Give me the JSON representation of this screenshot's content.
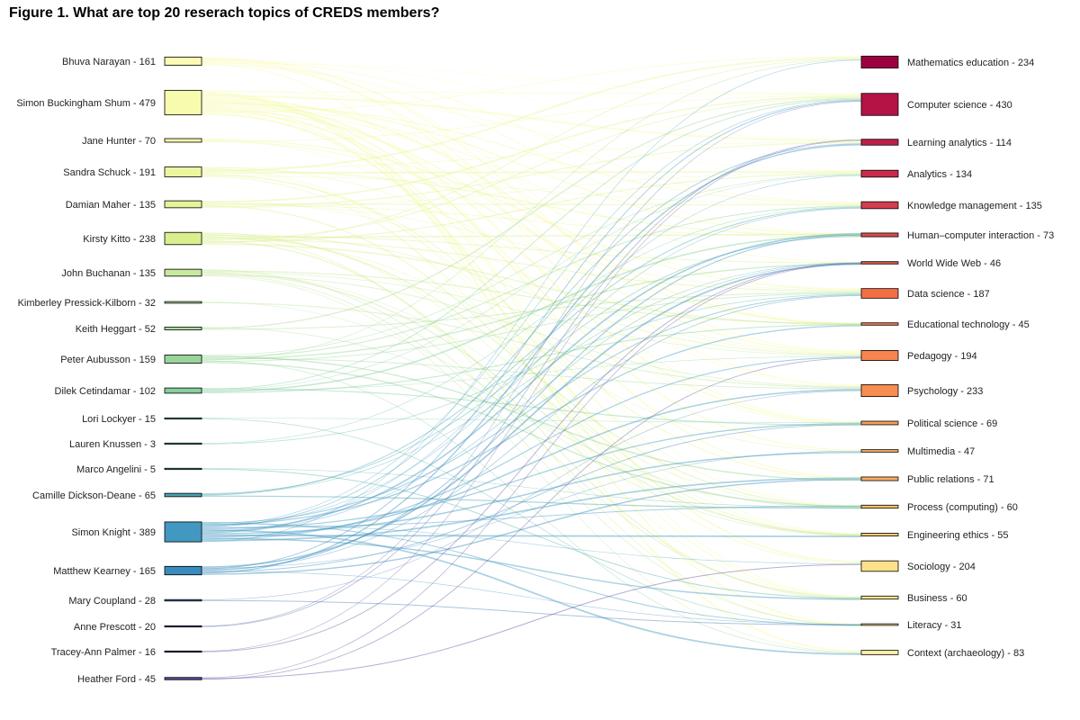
{
  "title": "Figure 1. What are top 20 reserach topics of CREDS members?",
  "chart_data": {
    "type": "sankey",
    "title": "Figure 1. What are top 20 reserach topics of CREDS members?",
    "sources": [
      {
        "name": "Bhuva Narayan",
        "value": 161,
        "label": "Bhuva Narayan - 161",
        "color": "#fbfbb5"
      },
      {
        "name": "Simon Buckingham Shum",
        "value": 479,
        "label": "Simon Buckingham Shum - 479",
        "color": "#f7fbae"
      },
      {
        "name": "Jane Hunter",
        "value": 70,
        "label": "Jane Hunter - 70",
        "color": "#f2f8a6"
      },
      {
        "name": "Sandra Schuck",
        "value": 191,
        "label": "Sandra Schuck - 191",
        "color": "#ecf69f"
      },
      {
        "name": "Damian Maher",
        "value": 135,
        "label": "Damian Maher - 135",
        "color": "#e5f399"
      },
      {
        "name": "Kirsty Kitto",
        "value": 238,
        "label": "Kirsty Kitto - 238",
        "color": "#d9ef8e"
      },
      {
        "name": "John Buchanan",
        "value": 135,
        "label": "John Buchanan - 135",
        "color": "#c8e9a0"
      },
      {
        "name": "Kimberley Pressick-Kilborn",
        "value": 32,
        "label": "Kimberley Pressick-Kilborn - 32",
        "color": "#bde5a0"
      },
      {
        "name": "Keith Heggart",
        "value": 52,
        "label": "Keith Heggart - 52",
        "color": "#aadd9c"
      },
      {
        "name": "Peter Aubusson",
        "value": 159,
        "label": "Peter Aubusson - 159",
        "color": "#99d59a"
      },
      {
        "name": "Dilek Cetindamar",
        "value": 102,
        "label": "Dilek Cetindamar - 102",
        "color": "#86cf9e"
      },
      {
        "name": "Lori Lockyer",
        "value": 15,
        "label": "Lori Lockyer - 15",
        "color": "#74c6a4"
      },
      {
        "name": "Lauren Knussen",
        "value": 3,
        "label": "Lauren Knussen - 3",
        "color": "#66c2a5"
      },
      {
        "name": "Marco Angelini",
        "value": 5,
        "label": "Marco Angelini - 5",
        "color": "#58b3ac"
      },
      {
        "name": "Camille Dickson-Deane",
        "value": 65,
        "label": "Camille Dickson-Deane - 65",
        "color": "#4aa5b2"
      },
      {
        "name": "Simon Knight",
        "value": 389,
        "label": "Simon Knight - 389",
        "color": "#4298c0"
      },
      {
        "name": "Matthew Kearney",
        "value": 165,
        "label": "Matthew Kearney - 165",
        "color": "#3a8bbd"
      },
      {
        "name": "Mary Coupland",
        "value": 28,
        "label": "Mary Coupland - 28",
        "color": "#4a7bb7"
      },
      {
        "name": "Anne Prescott",
        "value": 20,
        "label": "Anne Prescott - 20",
        "color": "#5566ad"
      },
      {
        "name": "Tracey-Ann Palmer",
        "value": 16,
        "label": "Tracey-Ann Palmer - 16",
        "color": "#5e4fa2"
      },
      {
        "name": "Heather Ford",
        "value": 45,
        "label": "Heather Ford - 45",
        "color": "#5b4a9e"
      }
    ],
    "targets": [
      {
        "name": "Mathematics education",
        "value": 234,
        "label": "Mathematics education - 234",
        "color": "#9e0142"
      },
      {
        "name": "Computer science",
        "value": 430,
        "label": "Computer science - 430",
        "color": "#b51246"
      },
      {
        "name": "Learning analytics",
        "value": 114,
        "label": "Learning analytics - 114",
        "color": "#c11e4a"
      },
      {
        "name": "Analytics",
        "value": 134,
        "label": "Analytics - 134",
        "color": "#cb2a4c"
      },
      {
        "name": "Knowledge management",
        "value": 135,
        "label": "Knowledge management - 135",
        "color": "#d53e4f"
      },
      {
        "name": "Human–computer interaction",
        "value": 73,
        "label": "Human–computer interaction - 73",
        "color": "#dd4a4c"
      },
      {
        "name": "World Wide Web",
        "value": 46,
        "label": "World Wide Web - 46",
        "color": "#e55748"
      },
      {
        "name": "Data science",
        "value": 187,
        "label": "Data science - 187",
        "color": "#f46d43"
      },
      {
        "name": "Educational technology",
        "value": 45,
        "label": "Educational technology - 45",
        "color": "#f57a47"
      },
      {
        "name": "Pedagogy",
        "value": 194,
        "label": "Pedagogy - 194",
        "color": "#f7844e"
      },
      {
        "name": "Psychology",
        "value": 233,
        "label": "Psychology - 233",
        "color": "#f88d52"
      },
      {
        "name": "Political science",
        "value": 69,
        "label": "Political science - 69",
        "color": "#f99e5b"
      },
      {
        "name": "Multimedia",
        "value": 47,
        "label": "Multimedia - 47",
        "color": "#faad64"
      },
      {
        "name": "Public relations",
        "value": 71,
        "label": "Public relations - 71",
        "color": "#fdae61"
      },
      {
        "name": "Process (computing)",
        "value": 60,
        "label": "Process (computing) - 60",
        "color": "#fdbf6f"
      },
      {
        "name": "Engineering ethics",
        "value": 55,
        "label": "Engineering ethics - 55",
        "color": "#fecb7c"
      },
      {
        "name": "Sociology",
        "value": 204,
        "label": "Sociology - 204",
        "color": "#fee08b"
      },
      {
        "name": "Business",
        "value": 60,
        "label": "Business - 60",
        "color": "#fee593"
      },
      {
        "name": "Literacy",
        "value": 31,
        "label": "Literacy - 31",
        "color": "#feea9b"
      },
      {
        "name": "Context (archaeology)",
        "value": 83,
        "label": "Context (archaeology) - 83",
        "color": "#ffefa4"
      }
    ]
  }
}
